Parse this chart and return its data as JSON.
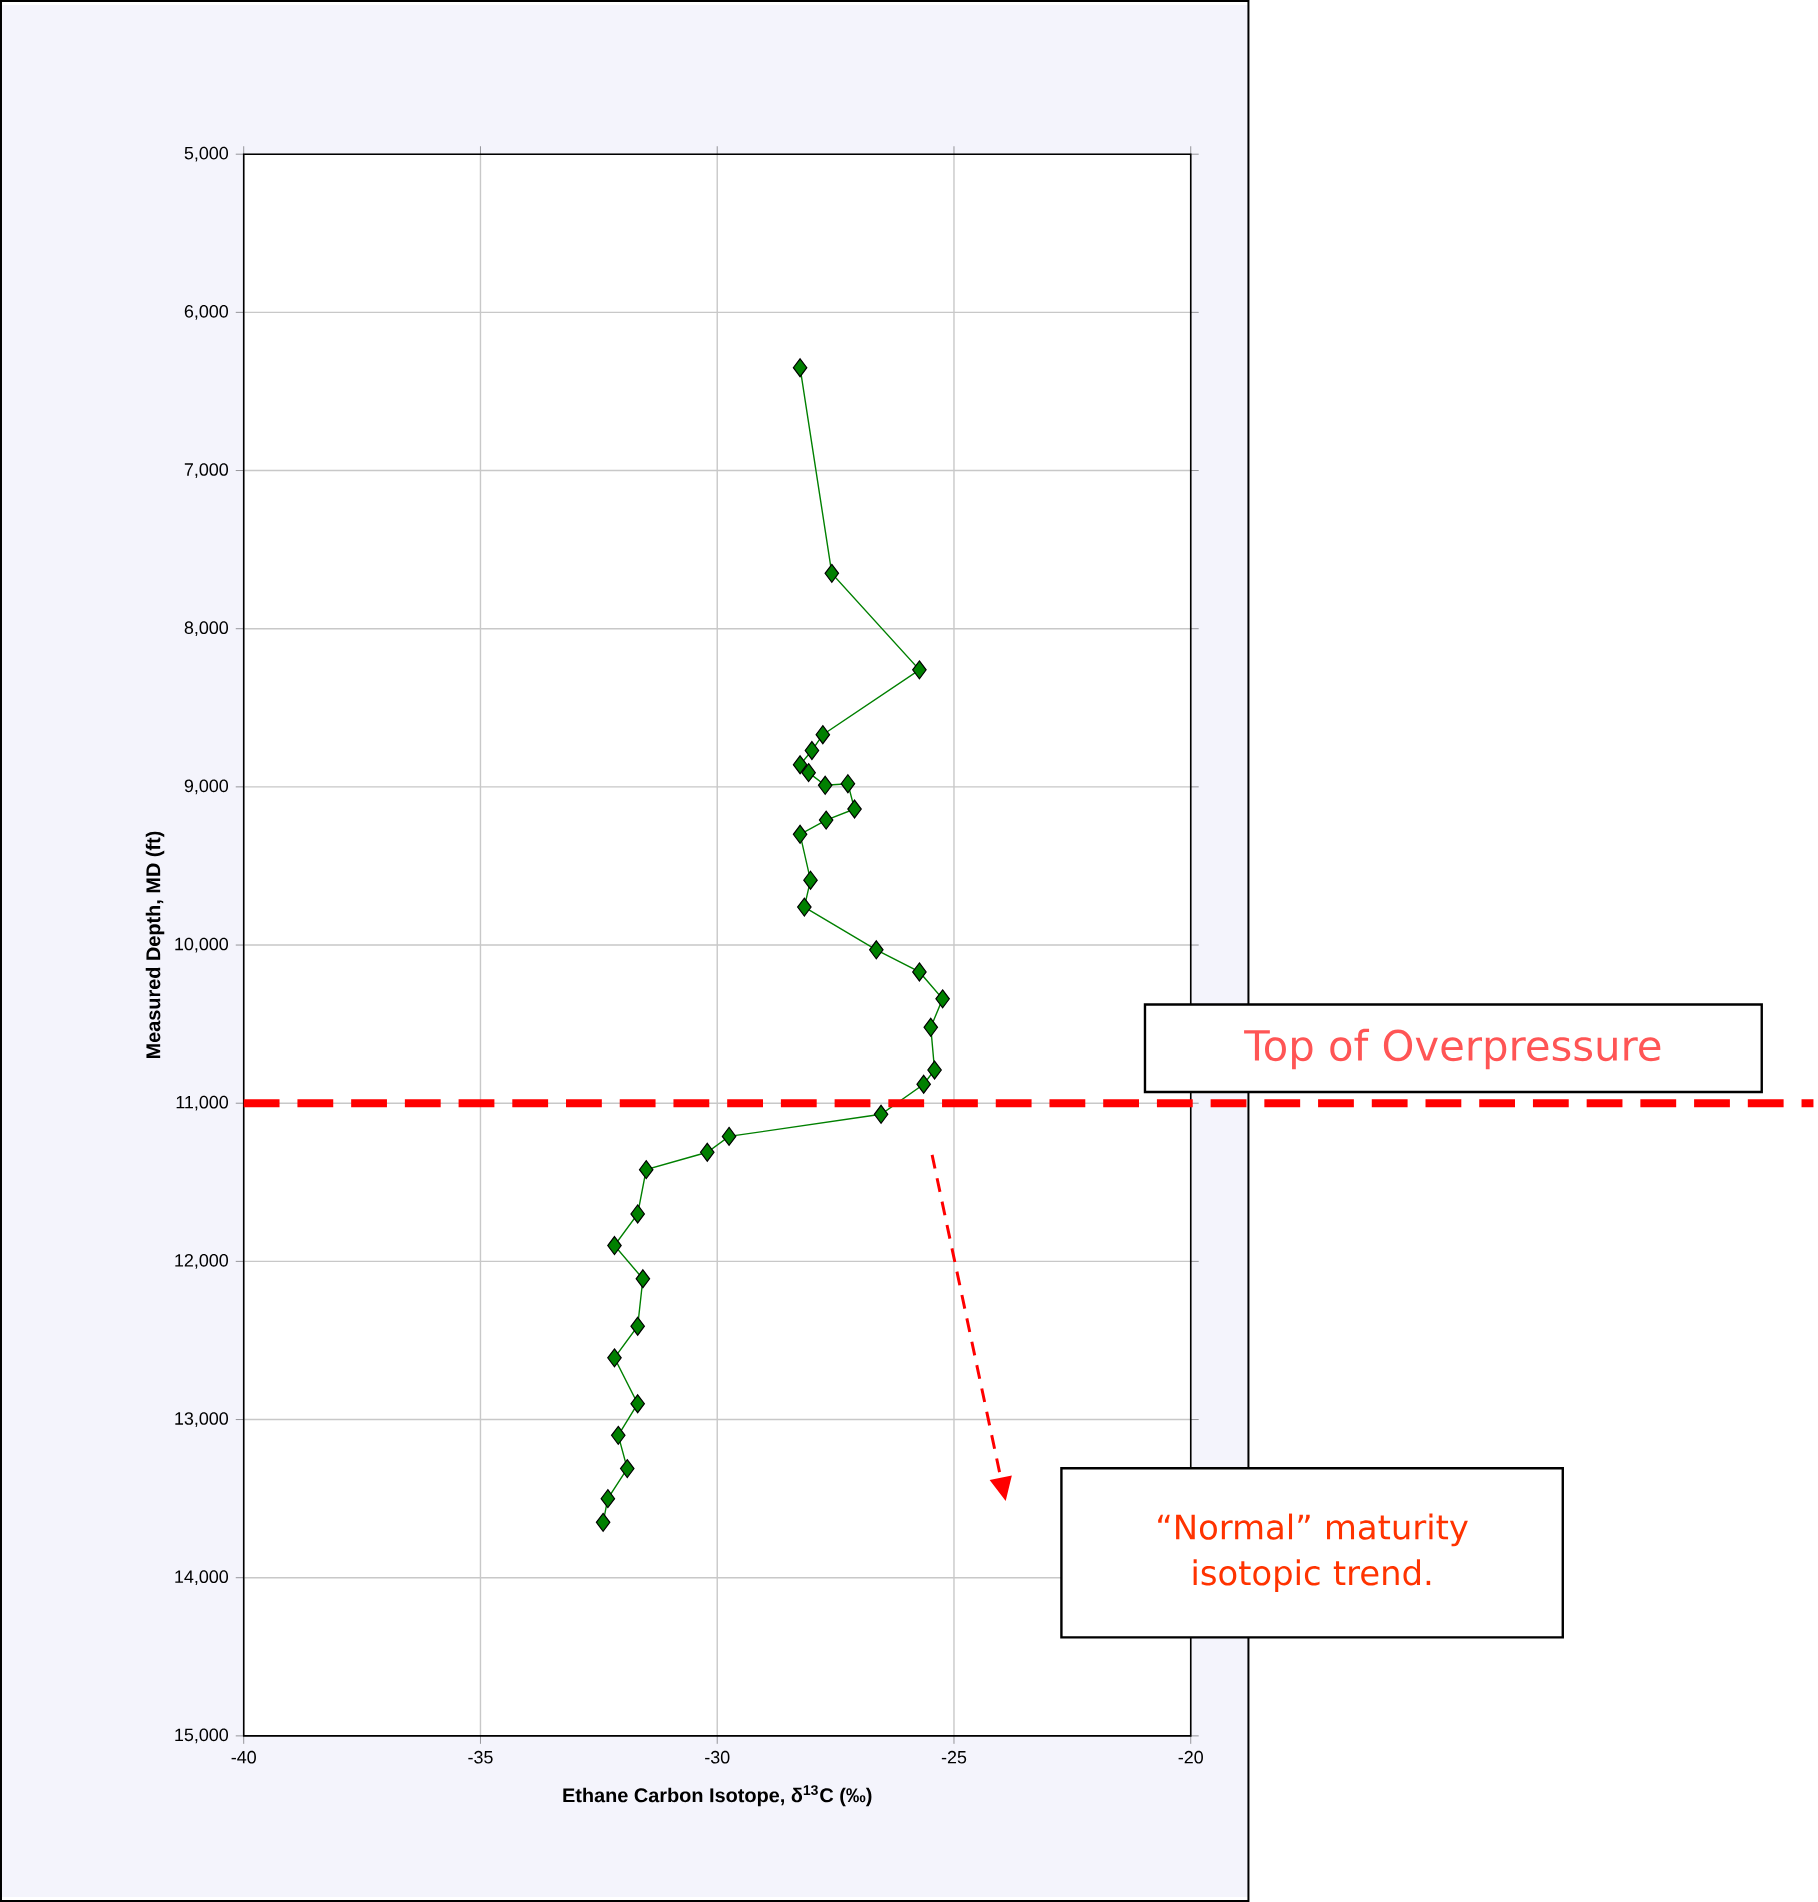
{
  "chart_data": {
    "type": "line",
    "xlabel": "Ethane Carbon Isotope, δ$^{13}$C (‰)",
    "ylabel": "Measured Depth, MD (ft)",
    "x": [
      -28.25,
      -27.58,
      -25.73,
      -27.77,
      -28.0,
      -28.25,
      -28.07,
      -27.72,
      -27.24,
      -27.1,
      -27.7,
      -28.25,
      -28.03,
      -28.16,
      -26.64,
      -25.73,
      -25.24,
      -25.49,
      -25.41,
      -25.64,
      -26.54,
      -29.75,
      -30.21,
      -31.5,
      -31.68,
      -32.17,
      -31.57,
      -31.68,
      -32.17,
      -31.68,
      -32.09,
      -31.9,
      -32.31,
      -32.41
    ],
    "series": [
      {
        "color": "#008000",
        "values": [
          6350,
          7650,
          8260,
          8670,
          8770,
          8860,
          8910,
          8990,
          8980,
          9140,
          9210,
          9300,
          9590,
          9760,
          10030,
          10170,
          10340,
          10520,
          10790,
          10880,
          11070,
          11210,
          11310,
          11420,
          11700,
          11900,
          12110,
          12410,
          12610,
          12900,
          13100,
          13310,
          13500,
          13650
        ]
      }
    ],
    "xlim": [
      -40,
      -20
    ],
    "xticks": [
      -40,
      -35,
      -30,
      -25,
      -20
    ],
    "ylim": [
      15000,
      5000
    ],
    "yticks": [
      {
        "value": 5000,
        "label": "5,000"
      },
      {
        "value": 6000,
        "label": "6,000"
      },
      {
        "value": 7000,
        "label": "7,000"
      },
      {
        "value": 8000,
        "label": "8,000"
      },
      {
        "value": 9000,
        "label": "9,000"
      },
      {
        "value": 10000,
        "label": "10,000"
      },
      {
        "value": 11000,
        "label": "11,000"
      },
      {
        "value": 12000,
        "label": "12,000"
      },
      {
        "value": 13000,
        "label": "13,000"
      },
      {
        "value": 14000,
        "label": "14,000"
      },
      {
        "value": 15000,
        "label": "15,000"
      }
    ],
    "grid": true,
    "marker": "diamond",
    "line_style": "solid",
    "ref_lines": [
      {
        "axis": "y",
        "value": 11000,
        "label": "Top of Overpressure",
        "color": "#ff0000",
        "line_style": "dashed"
      }
    ],
    "annotations": [
      "“Normal” maturity isotopic trend."
    ]
  }
}
